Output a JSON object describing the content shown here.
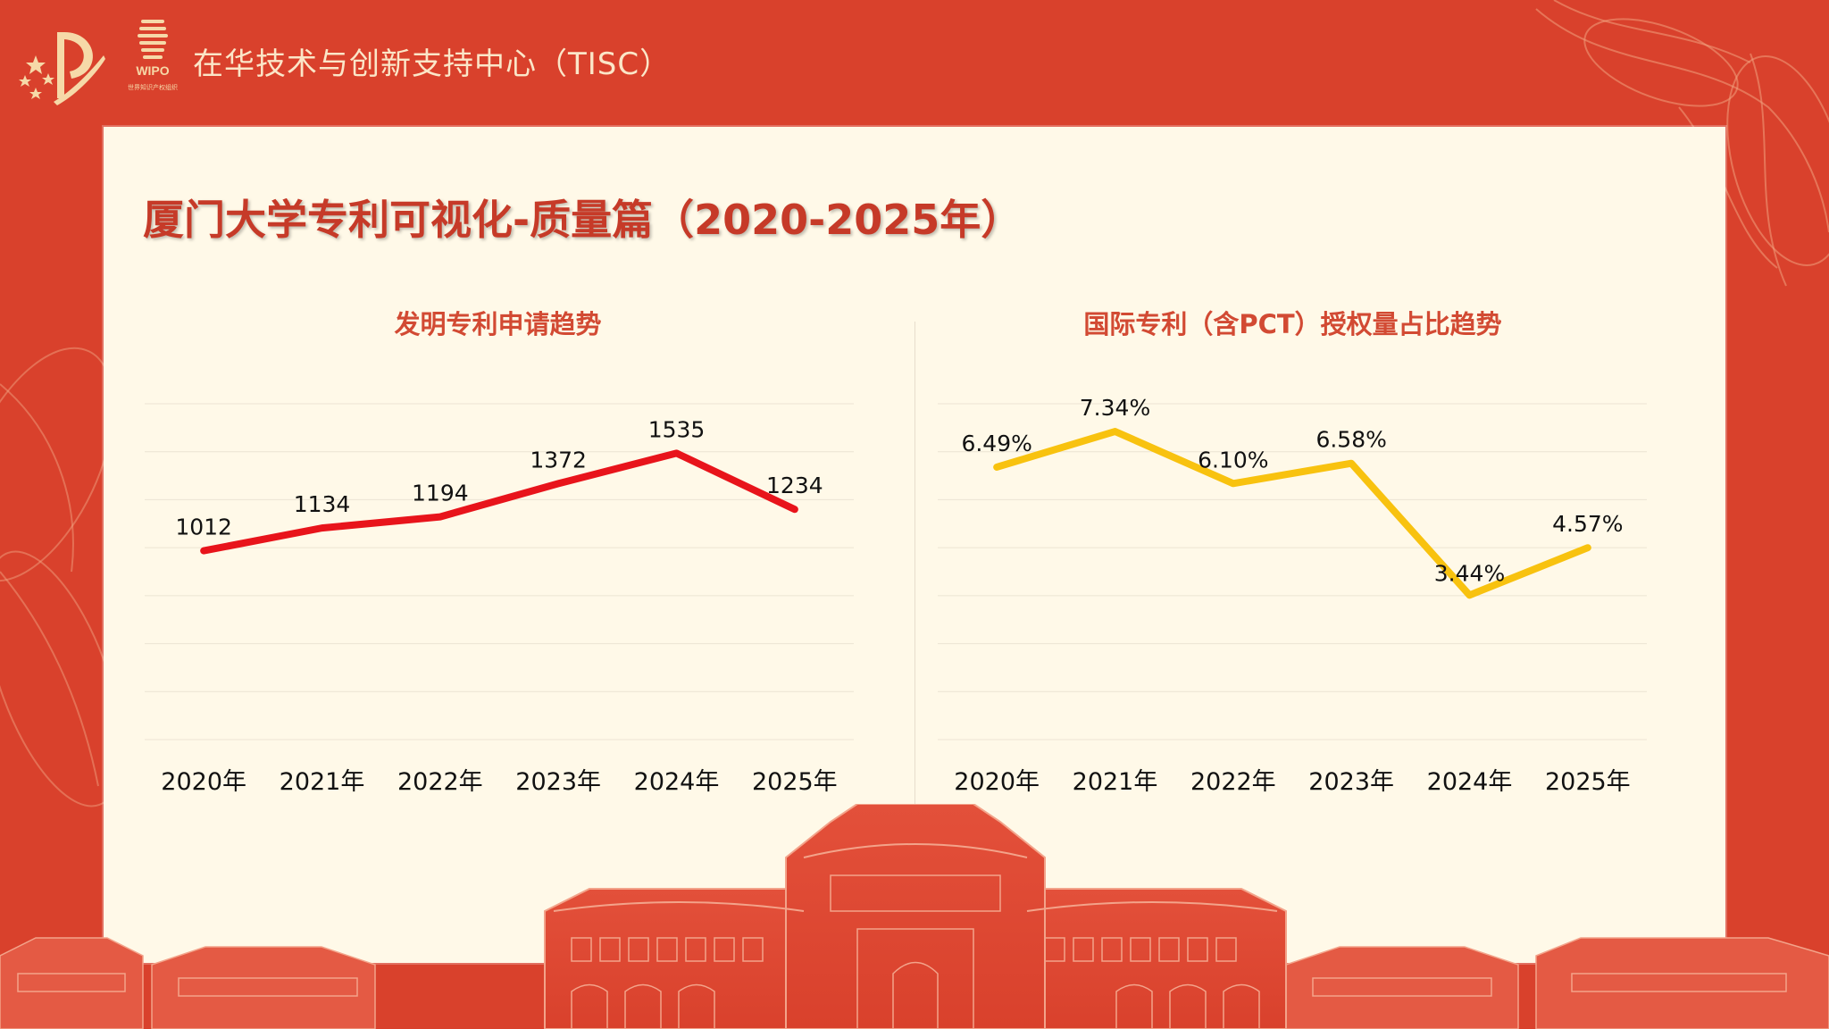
{
  "header": {
    "org_title": "在华技术与创新支持中心（TISC）",
    "wipo_logo_text": "WIPO",
    "wipo_logo_sub": "世界知识产权组织"
  },
  "page": {
    "title": "厦门大学专利可视化-质量篇（2020-2025年）"
  },
  "colors": {
    "frame_red": "#d9412c",
    "card_bg": "#fff9e8",
    "title_red": "#c63a28",
    "line1": "#e8141b",
    "line2": "#f8c20f"
  },
  "chart_data": [
    {
      "type": "line",
      "title": "发明专利申请趋势",
      "categories": [
        "2020年",
        "2021年",
        "2022年",
        "2023年",
        "2024年",
        "2025年"
      ],
      "values": [
        1012,
        1134,
        1194,
        1372,
        1535,
        1234
      ],
      "labels": [
        "1012",
        "1134",
        "1194",
        "1372",
        "1535",
        "1234"
      ],
      "ylim": [
        0,
        1800
      ],
      "grid": true,
      "color": "#e8141b"
    },
    {
      "type": "line",
      "title": "国际专利（含PCT）授权量占比趋势",
      "categories": [
        "2020年",
        "2021年",
        "2022年",
        "2023年",
        "2024年",
        "2025年"
      ],
      "values": [
        6.49,
        7.34,
        6.1,
        6.58,
        3.44,
        4.57
      ],
      "labels": [
        "6.49%",
        "7.34%",
        "6.10%",
        "6.58%",
        "3.44%",
        "4.57%"
      ],
      "ylim": [
        0,
        8
      ],
      "grid": true,
      "color": "#f8c20f"
    }
  ]
}
